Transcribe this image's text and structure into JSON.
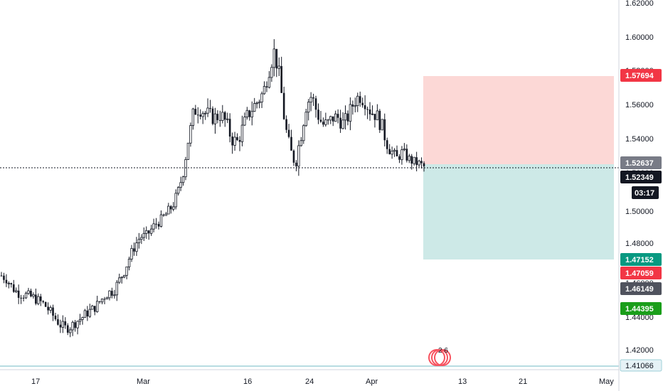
{
  "colors": {
    "candle": "#131722",
    "stop_zone": "#fcd8d6",
    "target_zone": "#cde9e7",
    "stop_badge": "#f23645",
    "target_badge": "#089981",
    "entry_badge": "#787b86",
    "last_price_badge": "#131722",
    "red_badge": "#f23645",
    "gray_badge": "#50535e",
    "green_badge": "#1a9e1a",
    "bottom_line": "#9fd0d8",
    "event_marker": "#f7525f"
  },
  "price_axis": {
    "labels": [
      "1.62000",
      "1.60000",
      "1.58000",
      "1.56000",
      "1.54000",
      "1.52000",
      "1.50000",
      "1.48000",
      "1.46000",
      "1.44000",
      "1.42000"
    ]
  },
  "time_axis": {
    "labels": [
      "17",
      "Mar",
      "16",
      "24",
      "Apr",
      "13",
      "21",
      "May"
    ]
  },
  "badges": {
    "stop_price": "1.57694",
    "entry_price": "1.52637",
    "last_price": "1.52349",
    "countdown": "03:17",
    "target_price": "1.47152",
    "red_level": "1.47059",
    "gray_level": "1.46149",
    "green_level": "1.44395",
    "bottom_level": "1.41066"
  },
  "event_marker": {
    "label": "2 6",
    "icon": "calendar-event-icon"
  },
  "chart_data": {
    "type": "candlestick",
    "title": "",
    "x_axis": [
      "17",
      "Mar",
      "16",
      "24",
      "Apr",
      "13",
      "21",
      "May"
    ],
    "ylim": [
      1.41,
      1.62
    ],
    "last_price": 1.52349,
    "position": {
      "entry": 1.52637,
      "stop": 1.57694,
      "target": 1.47152
    },
    "close_path": [
      1.459,
      1.457,
      1.452,
      1.449,
      1.448,
      1.447,
      1.446,
      1.444,
      1.442,
      1.438,
      1.434,
      1.43,
      1.428,
      1.429,
      1.432,
      1.434,
      1.437,
      1.439,
      1.442,
      1.446,
      1.449,
      1.45,
      1.456,
      1.462,
      1.47,
      1.477,
      1.482,
      1.482,
      1.486,
      1.49,
      1.492,
      1.496,
      1.5,
      1.508,
      1.52,
      1.54,
      1.556,
      1.558,
      1.555,
      1.553,
      1.552,
      1.554,
      1.549,
      1.54,
      1.537,
      1.545,
      1.553,
      1.558,
      1.562,
      1.567,
      1.58,
      1.591,
      1.576,
      1.548,
      1.532,
      1.526,
      1.542,
      1.56,
      1.565,
      1.555,
      1.548,
      1.548,
      1.552,
      1.552,
      1.548,
      1.554,
      1.562,
      1.565,
      1.562,
      1.556,
      1.554,
      1.548,
      1.538,
      1.532,
      1.528,
      1.532,
      1.528,
      1.526,
      1.525,
      1.523
    ]
  }
}
